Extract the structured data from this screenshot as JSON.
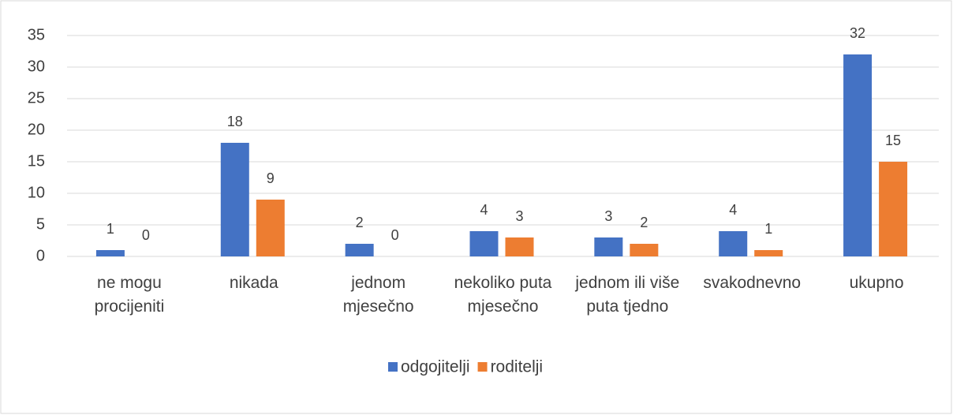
{
  "chart_data": {
    "type": "bar",
    "categories": [
      "ne mogu procijeniti",
      "nikada",
      "jednom mjesečno",
      "nekoliko puta mjesečno",
      "jednom ili više puta tjedno",
      "svakodnevno",
      "ukupno"
    ],
    "series": [
      {
        "name": "odgojitelji",
        "color": "#4472c4",
        "values": [
          1,
          18,
          2,
          4,
          3,
          4,
          32
        ]
      },
      {
        "name": "roditelji",
        "color": "#ed7d31",
        "values": [
          0,
          9,
          0,
          3,
          2,
          1,
          15
        ]
      }
    ],
    "ylim": [
      0,
      35
    ],
    "yticks": [
      0,
      5,
      10,
      15,
      20,
      25,
      30,
      35
    ],
    "grid": true,
    "legend": "bottom"
  }
}
